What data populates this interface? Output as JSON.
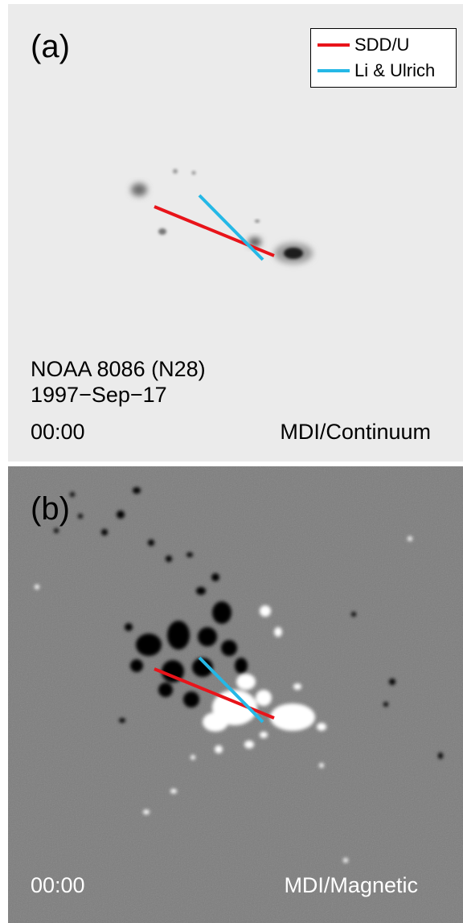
{
  "panels": {
    "a": {
      "label": "(a)",
      "region": "NOAA 8086 (N28)",
      "date": "1997−Sep−17",
      "time": "00:00",
      "instrument": "MDI/Continuum"
    },
    "b": {
      "label": "(b)",
      "time": "00:00",
      "instrument": "MDI/Magnetic"
    }
  },
  "legend": {
    "items": [
      {
        "label": "SDD/U",
        "color": "#e8141a"
      },
      {
        "label": "Li & Ulrich",
        "color": "#25b8e6"
      }
    ]
  },
  "colors": {
    "sdd_line": "#e8141a",
    "li_ulrich_line": "#25b8e6",
    "continuum_background": "#ebebeb",
    "magnetogram_background": "#7c7c7c"
  }
}
